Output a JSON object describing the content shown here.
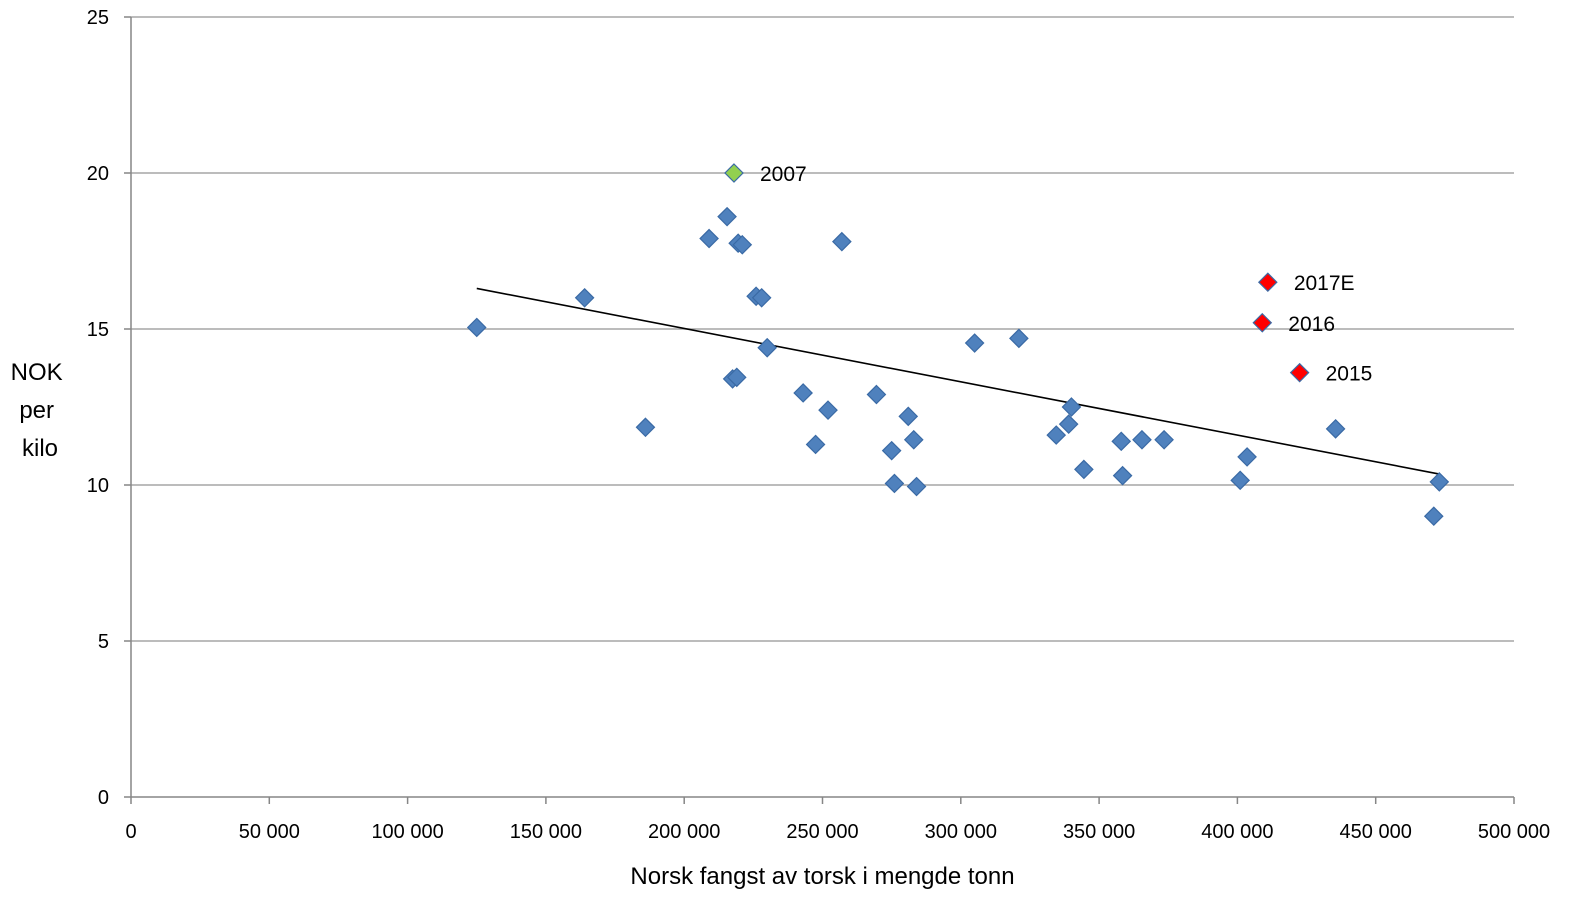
{
  "chart_data": {
    "type": "scatter",
    "xlabel": "Norsk fangst av torsk i mengde tonn",
    "ylabel_lines": [
      "NOK",
      "per",
      "kilo"
    ],
    "xlim": [
      0,
      500000
    ],
    "ylim": [
      0,
      25
    ],
    "x_ticks": [
      0,
      50000,
      100000,
      150000,
      200000,
      250000,
      300000,
      350000,
      400000,
      450000,
      500000
    ],
    "x_tick_labels": [
      "0",
      "50 000",
      "100 000",
      "150 000",
      "200 000",
      "250 000",
      "300 000",
      "350 000",
      "400 000",
      "450 000",
      "500 000"
    ],
    "y_ticks": [
      0,
      5,
      10,
      15,
      20,
      25
    ],
    "y_tick_labels": [
      "0",
      "5",
      "10",
      "15",
      "20",
      "25"
    ],
    "grid": "horizontal",
    "colors": {
      "default": "#4f81bd",
      "highlight_2007": "#92d050",
      "recent": "#ff0000",
      "trendline": "#000000",
      "grid": "#a6a6a6"
    },
    "points": [
      {
        "x": 125000,
        "y": 15.05
      },
      {
        "x": 164000,
        "y": 16.0
      },
      {
        "x": 186000,
        "y": 11.85
      },
      {
        "x": 209000,
        "y": 17.9
      },
      {
        "x": 215500,
        "y": 18.6
      },
      {
        "x": 217500,
        "y": 13.4
      },
      {
        "x": 219000,
        "y": 13.45
      },
      {
        "x": 219500,
        "y": 17.75
      },
      {
        "x": 221000,
        "y": 17.7
      },
      {
        "x": 226000,
        "y": 16.05
      },
      {
        "x": 228000,
        "y": 16.0
      },
      {
        "x": 230000,
        "y": 14.4
      },
      {
        "x": 243000,
        "y": 12.95
      },
      {
        "x": 247500,
        "y": 11.3
      },
      {
        "x": 252000,
        "y": 12.4
      },
      {
        "x": 257000,
        "y": 17.8
      },
      {
        "x": 269500,
        "y": 12.9
      },
      {
        "x": 275000,
        "y": 11.1
      },
      {
        "x": 276000,
        "y": 10.05
      },
      {
        "x": 281000,
        "y": 12.2
      },
      {
        "x": 283000,
        "y": 11.45
      },
      {
        "x": 284000,
        "y": 9.95
      },
      {
        "x": 305000,
        "y": 14.55
      },
      {
        "x": 321000,
        "y": 14.7
      },
      {
        "x": 334500,
        "y": 11.6
      },
      {
        "x": 339000,
        "y": 11.95
      },
      {
        "x": 340000,
        "y": 12.5
      },
      {
        "x": 344500,
        "y": 10.5
      },
      {
        "x": 358000,
        "y": 11.4
      },
      {
        "x": 358500,
        "y": 10.3
      },
      {
        "x": 365500,
        "y": 11.45
      },
      {
        "x": 373500,
        "y": 11.45
      },
      {
        "x": 401000,
        "y": 10.15
      },
      {
        "x": 403500,
        "y": 10.9
      },
      {
        "x": 435500,
        "y": 11.8
      },
      {
        "x": 471000,
        "y": 9.0
      },
      {
        "x": 473000,
        "y": 10.1
      },
      {
        "x": 218000,
        "y": 20.0,
        "label": "2007",
        "highlight": "2007"
      },
      {
        "x": 411000,
        "y": 16.5,
        "label": "2017E",
        "highlight": "recent"
      },
      {
        "x": 409000,
        "y": 15.2,
        "label": "2016",
        "highlight": "recent"
      },
      {
        "x": 422500,
        "y": 13.6,
        "label": "2015",
        "highlight": "recent"
      }
    ],
    "trendline": {
      "type": "linear",
      "x": [
        125000,
        473000
      ],
      "y": [
        16.3,
        10.35
      ]
    }
  }
}
